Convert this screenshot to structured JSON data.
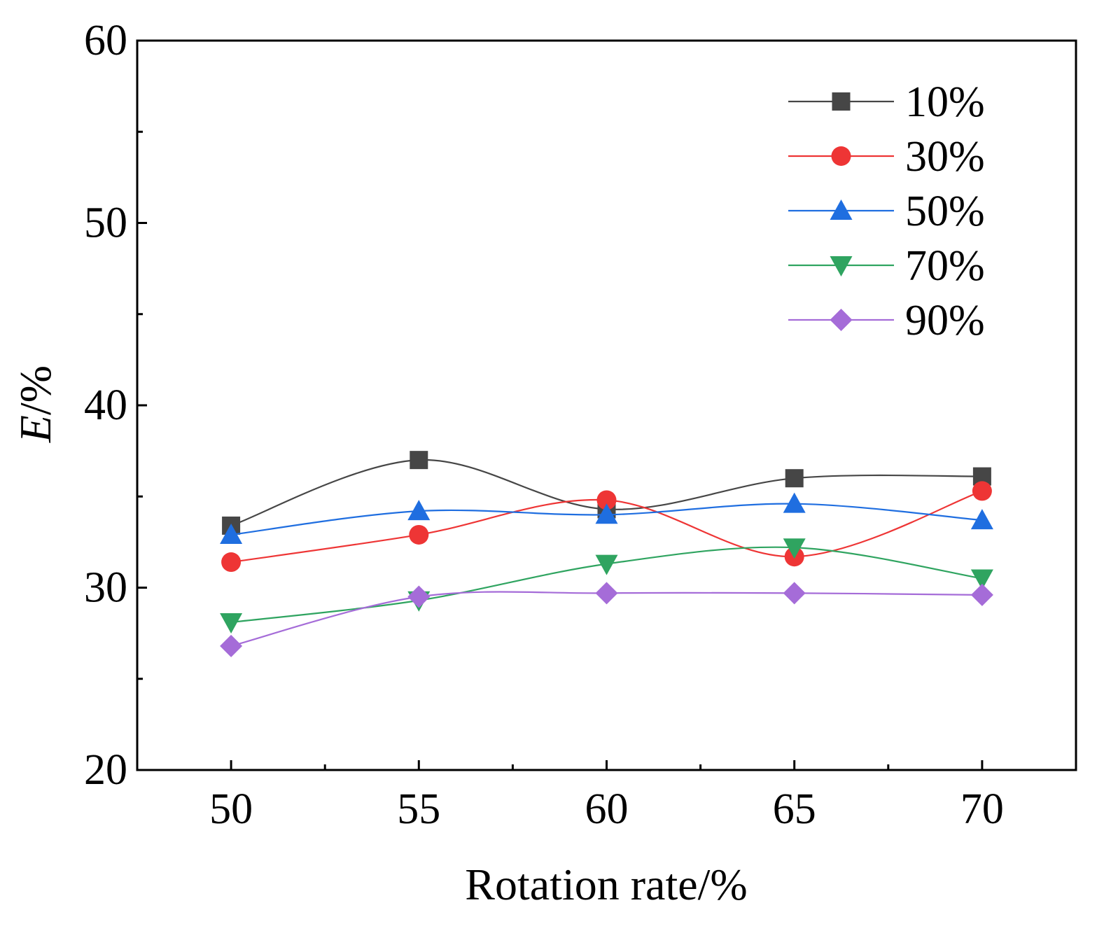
{
  "chart_data": {
    "type": "line",
    "title": "",
    "xlabel": "Rotation rate/%",
    "ylabel_italic": "E",
    "ylabel_rest": "/%",
    "xlim": [
      47.5,
      72.5
    ],
    "ylim": [
      20,
      60
    ],
    "xticks": [
      50,
      55,
      60,
      65,
      70
    ],
    "yticks": [
      20,
      30,
      40,
      50,
      60
    ],
    "x": [
      50,
      55,
      60,
      65,
      70
    ],
    "legend_position": "top-right",
    "series": [
      {
        "name": "10%",
        "color": "#464646",
        "marker": "square",
        "values": [
          33.4,
          37.0,
          34.3,
          36.0,
          36.1
        ]
      },
      {
        "name": "30%",
        "color": "#ee3535",
        "marker": "circle",
        "values": [
          31.4,
          32.9,
          34.8,
          31.7,
          35.3
        ]
      },
      {
        "name": "50%",
        "color": "#1f6ee0",
        "marker": "triangle-up",
        "values": [
          32.9,
          34.2,
          34.0,
          34.6,
          33.7
        ]
      },
      {
        "name": "70%",
        "color": "#2fa460",
        "marker": "triangle-down",
        "values": [
          28.1,
          29.3,
          31.3,
          32.2,
          30.5
        ]
      },
      {
        "name": "90%",
        "color": "#a56cd8",
        "marker": "diamond",
        "values": [
          26.8,
          29.5,
          29.7,
          29.7,
          29.6
        ]
      }
    ]
  }
}
